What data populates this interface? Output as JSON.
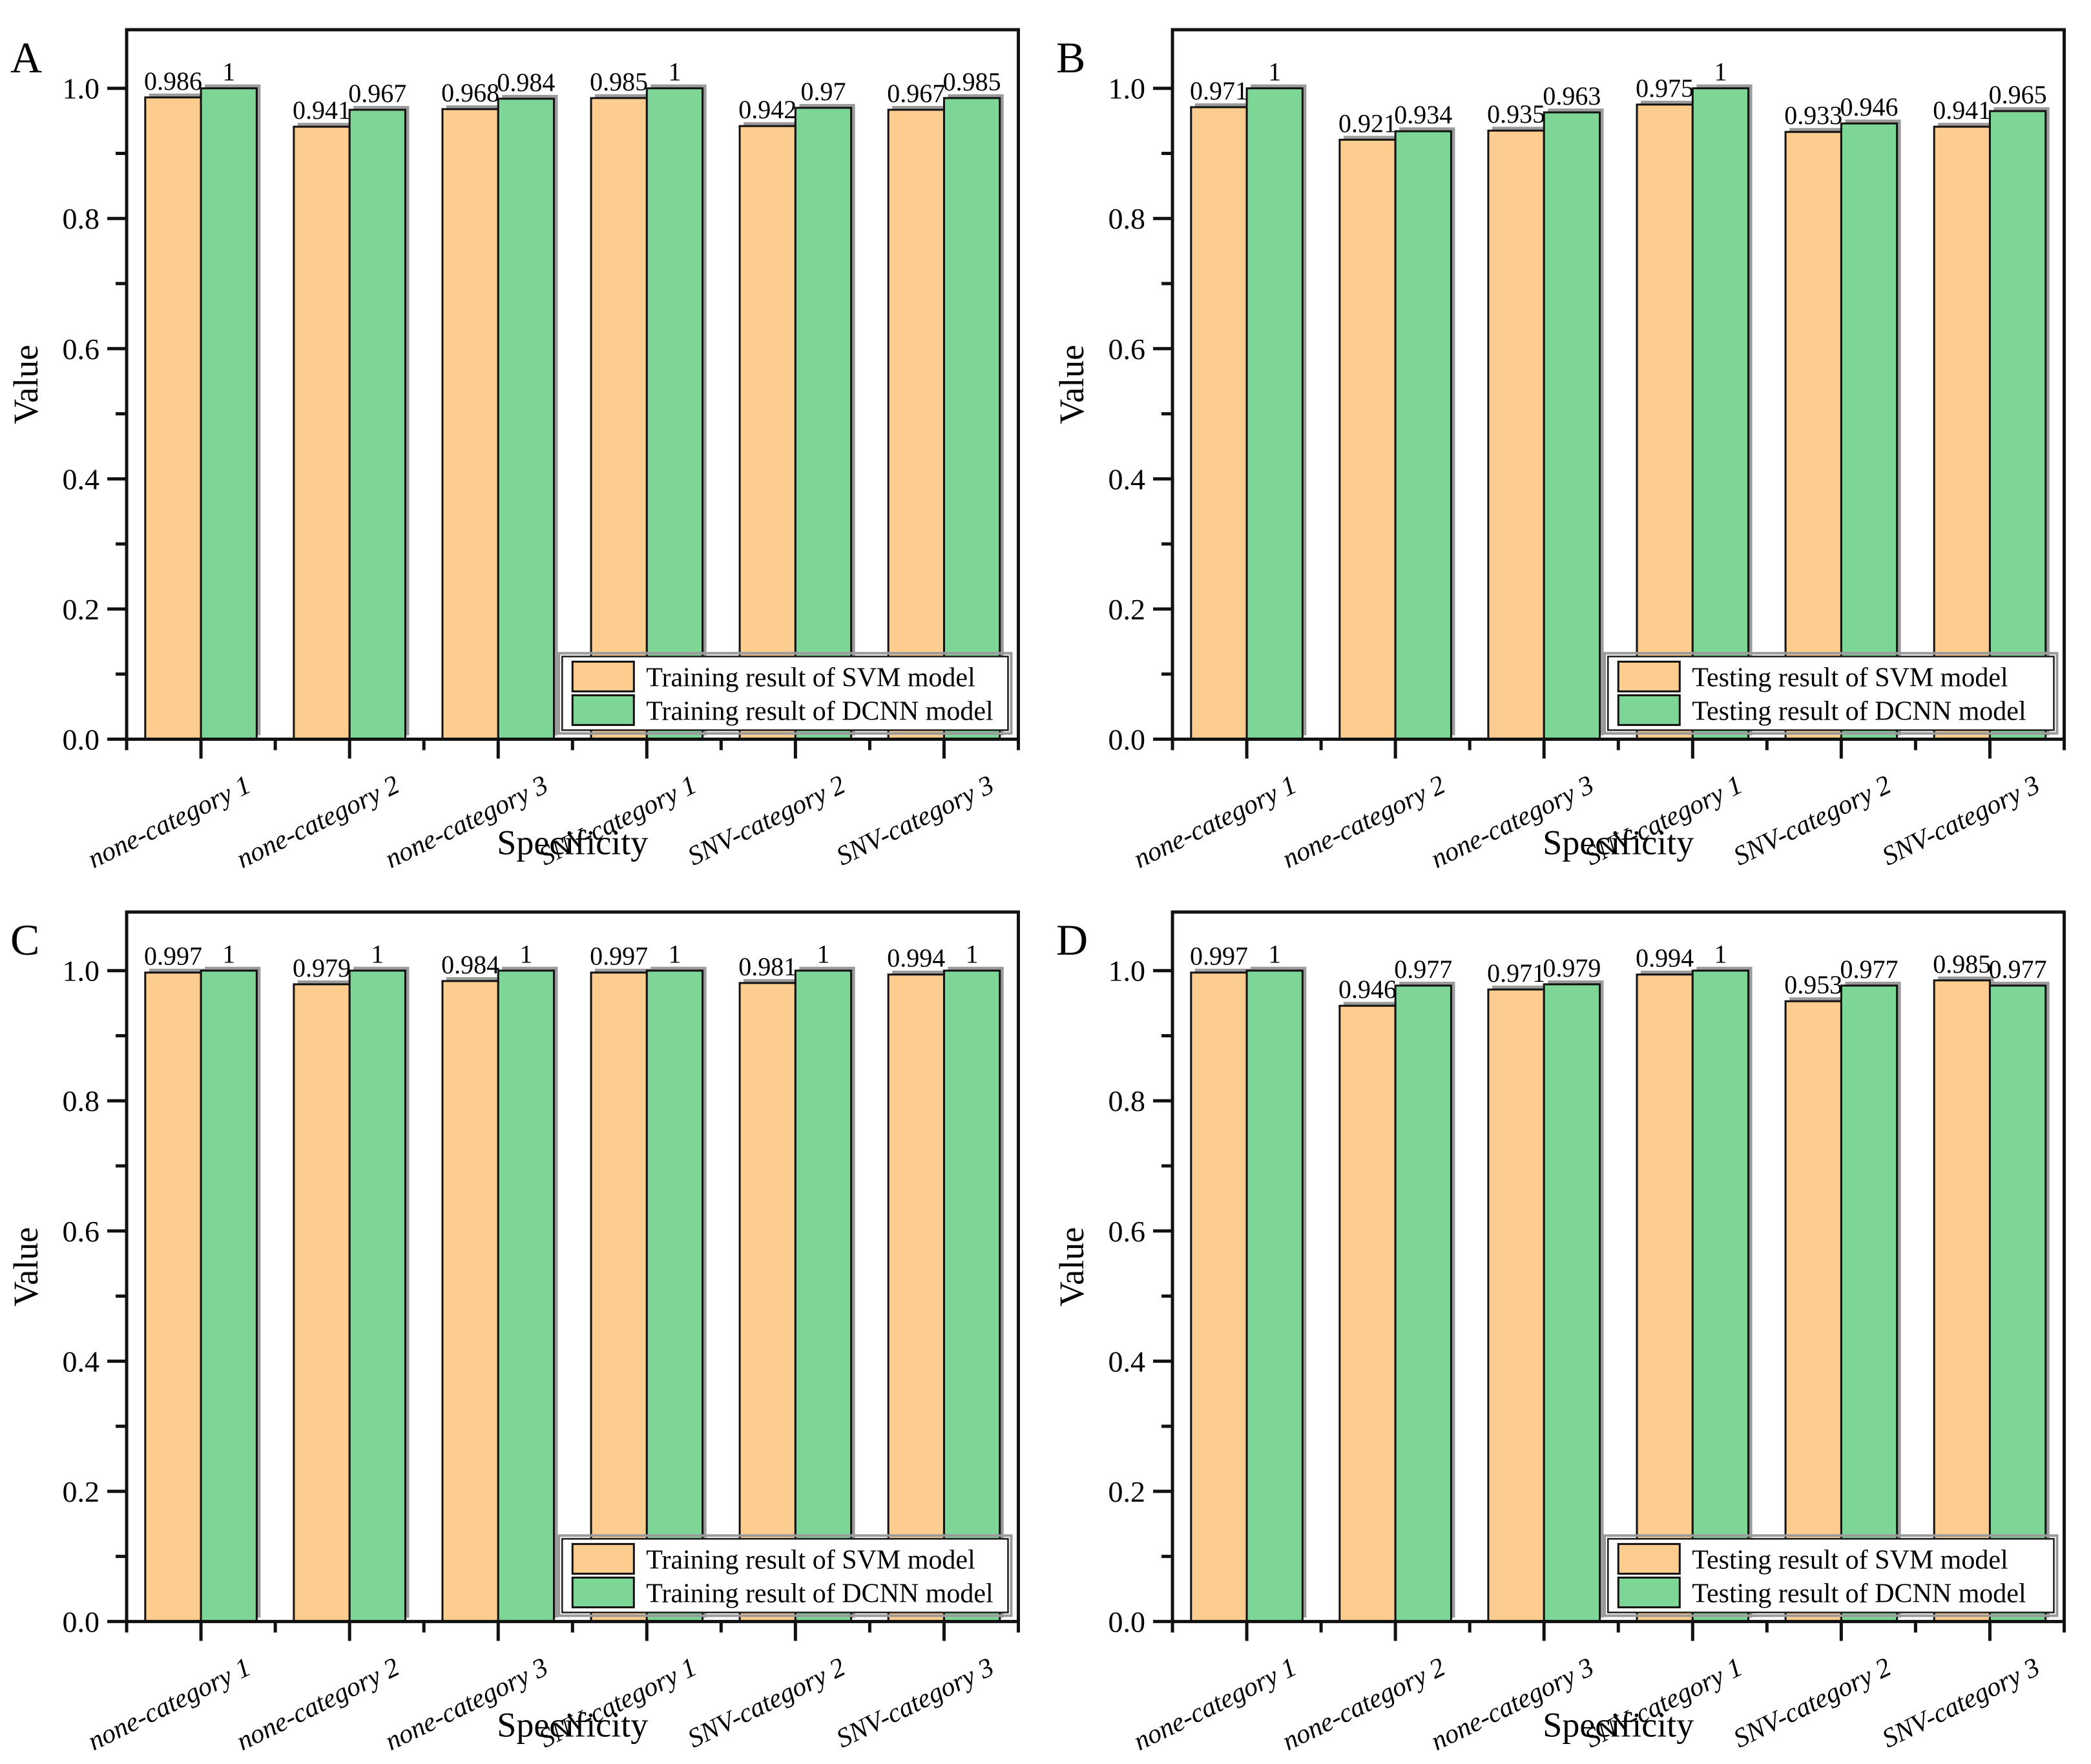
{
  "figure": {
    "description": "Four grouped bar charts comparing specificity of SVM and DCNN models",
    "panel_letters": [
      "A",
      "B",
      "C",
      "D"
    ]
  },
  "colors": {
    "svm_bar": "#FDCD8F",
    "dcnn_bar": "#7DD596",
    "bar_outline": "#111111",
    "bar_shadow": "#9b9b9b",
    "axis": "#111111",
    "legend_border": "#1a1a1a",
    "legend_shadow": "#9a9a9a",
    "background": "#ffffff"
  },
  "chart_data": [
    {
      "id": "A",
      "panel_label": "A",
      "type": "bar",
      "title": "",
      "categories": [
        "none-category 1",
        "none-category 2",
        "none-category 3",
        "SNV-category 1",
        "SNV-category 2",
        "SNV-category 3"
      ],
      "series": [
        {
          "name": "Training result of SVM model",
          "color_key": "svm_bar",
          "values": [
            0.986,
            0.941,
            0.968,
            0.985,
            0.942,
            0.967
          ]
        },
        {
          "name": "Training result of DCNN model",
          "color_key": "dcnn_bar",
          "values": [
            1,
            0.967,
            0.984,
            1,
            0.97,
            0.985
          ]
        }
      ],
      "xlabel": "Specificity",
      "ylabel": "Value",
      "yticks": [
        "0.0",
        "0.2",
        "0.4",
        "0.6",
        "0.8",
        "1.0"
      ],
      "ylim": [
        0,
        1.09
      ],
      "grid": false,
      "legend_position": "bottom-right"
    },
    {
      "id": "B",
      "panel_label": "B",
      "type": "bar",
      "title": "",
      "categories": [
        "none-category 1",
        "none-category 2",
        "none-category 3",
        "SNV-category 1",
        "SNV-category 2",
        "SNV-category 3"
      ],
      "series": [
        {
          "name": "Testing result of SVM model",
          "color_key": "svm_bar",
          "values": [
            0.971,
            0.921,
            0.935,
            0.975,
            0.933,
            0.941
          ]
        },
        {
          "name": "Testing result of DCNN model",
          "color_key": "dcnn_bar",
          "values": [
            1,
            0.934,
            0.963,
            1,
            0.946,
            0.965
          ]
        }
      ],
      "xlabel": "Specificity",
      "ylabel": "Value",
      "yticks": [
        "0.0",
        "0.2",
        "0.4",
        "0.6",
        "0.8",
        "1.0"
      ],
      "ylim": [
        0,
        1.09
      ],
      "grid": false,
      "legend_position": "bottom-right"
    },
    {
      "id": "C",
      "panel_label": "C",
      "type": "bar",
      "title": "",
      "categories": [
        "none-category 1",
        "none-category 2",
        "none-category 3",
        "SNV-category 1",
        "SNV-category 2",
        "SNV-category 3"
      ],
      "series": [
        {
          "name": "Training result of SVM model",
          "color_key": "svm_bar",
          "values": [
            0.997,
            0.979,
            0.984,
            0.997,
            0.981,
            0.994
          ]
        },
        {
          "name": "Training result of DCNN model",
          "color_key": "dcnn_bar",
          "values": [
            1,
            1,
            1,
            1,
            1,
            1
          ]
        }
      ],
      "xlabel": "Specificity",
      "ylabel": "Value",
      "yticks": [
        "0.0",
        "0.2",
        "0.4",
        "0.6",
        "0.8",
        "1.0"
      ],
      "ylim": [
        0,
        1.09
      ],
      "grid": false,
      "legend_position": "bottom-right"
    },
    {
      "id": "D",
      "panel_label": "D",
      "type": "bar",
      "title": "",
      "categories": [
        "none-category 1",
        "none-category 2",
        "none-category 3",
        "SNV-category 1",
        "SNV-category 2",
        "SNV-category 3"
      ],
      "series": [
        {
          "name": "Testing result of SVM model",
          "color_key": "svm_bar",
          "values": [
            0.997,
            0.946,
            0.971,
            0.994,
            0.953,
            0.985
          ]
        },
        {
          "name": "Testing result of DCNN model",
          "color_key": "dcnn_bar",
          "values": [
            1,
            0.977,
            0.979,
            1,
            0.977,
            0.977
          ]
        }
      ],
      "xlabel": "Specificity",
      "ylabel": "Value",
      "yticks": [
        "0.0",
        "0.2",
        "0.4",
        "0.6",
        "0.8",
        "1.0"
      ],
      "ylim": [
        0,
        1.09
      ],
      "grid": false,
      "legend_position": "bottom-right"
    }
  ]
}
